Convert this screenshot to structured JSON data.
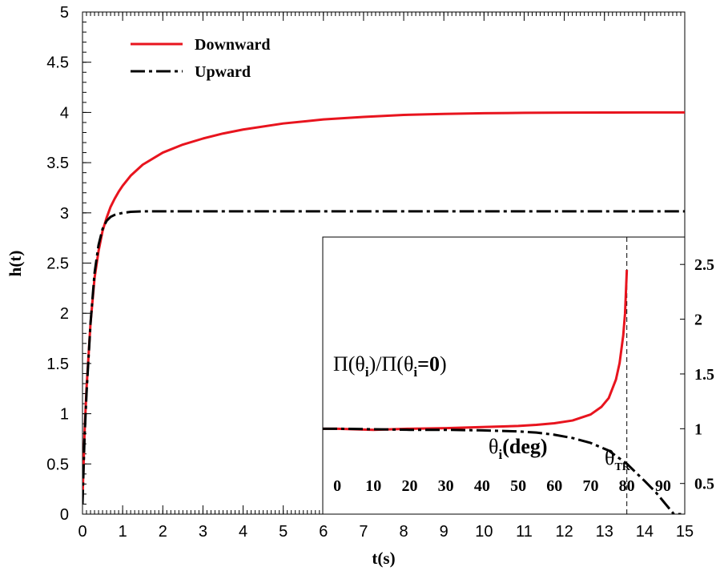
{
  "chart_data": [
    {
      "type": "line",
      "xlabel": "t(s)",
      "ylabel": "h(t)",
      "xlim": [
        0,
        15
      ],
      "ylim": [
        0,
        5
      ],
      "x_ticks": [
        "0",
        "1",
        "2",
        "3",
        "4",
        "5",
        "6",
        "7",
        "8",
        "9",
        "10",
        "11",
        "12",
        "13",
        "14",
        "15"
      ],
      "y_ticks": [
        "0",
        "0.5",
        "1",
        "1.5",
        "2",
        "2.5",
        "3",
        "3.5",
        "4",
        "4.5",
        "5"
      ],
      "grid": false,
      "legend_position": "top-left",
      "series": [
        {
          "name": "Downward",
          "color": "#e8141e",
          "style": "solid",
          "x": [
            0,
            0.05,
            0.1,
            0.2,
            0.3,
            0.4,
            0.5,
            0.6,
            0.7,
            0.8,
            0.9,
            1.0,
            1.2,
            1.5,
            2,
            2.5,
            3,
            3.5,
            4,
            5,
            6,
            7,
            8,
            9,
            10,
            11,
            12,
            13,
            14,
            15
          ],
          "y": [
            0.15,
            0.8,
            1.25,
            1.9,
            2.35,
            2.62,
            2.82,
            2.95,
            3.06,
            3.14,
            3.21,
            3.27,
            3.37,
            3.48,
            3.6,
            3.68,
            3.74,
            3.79,
            3.83,
            3.89,
            3.93,
            3.955,
            3.975,
            3.985,
            3.992,
            3.996,
            3.998,
            3.999,
            4.0,
            4.0
          ]
        },
        {
          "name": "Upward",
          "color": "#000000",
          "style": "dash-dot",
          "x": [
            0,
            0.05,
            0.1,
            0.2,
            0.3,
            0.4,
            0.5,
            0.6,
            0.7,
            0.8,
            0.9,
            1.0,
            1.2,
            1.5,
            2,
            3,
            5,
            8,
            10,
            12,
            15
          ],
          "y": [
            0.1,
            0.75,
            1.2,
            1.9,
            2.4,
            2.68,
            2.84,
            2.92,
            2.96,
            2.98,
            2.99,
            3.0,
            3.01,
            3.015,
            3.015,
            3.015,
            3.015,
            3.015,
            3.015,
            3.015,
            3.015
          ]
        }
      ]
    },
    {
      "type": "line",
      "position": "inset-bottom-right",
      "label_text": "Π(θi)/Π(θi=0)",
      "xlabel": "θi(deg)",
      "marker_label": "θTR",
      "marker_x": 80,
      "xlim": [
        -4,
        96
      ],
      "ylim": [
        0.22,
        2.75
      ],
      "x_ticks": [
        "0",
        "10",
        "20",
        "30",
        "40",
        "50",
        "60",
        "70",
        "80",
        "90"
      ],
      "y_ticks": [
        "0.5",
        "1",
        "1.5",
        "2",
        "2.5"
      ],
      "series": [
        {
          "name": "Downward",
          "color": "#e8141e",
          "style": "solid",
          "x": [
            -4,
            0,
            10,
            20,
            30,
            40,
            50,
            55,
            60,
            65,
            70,
            73,
            75,
            77,
            78,
            79,
            79.5,
            80
          ],
          "y": [
            1.0,
            1.0,
            0.99,
            1.0,
            1.005,
            1.015,
            1.025,
            1.035,
            1.05,
            1.075,
            1.13,
            1.2,
            1.28,
            1.45,
            1.6,
            1.85,
            2.05,
            2.45
          ]
        },
        {
          "name": "Upward",
          "color": "#000000",
          "style": "dash-dot",
          "x": [
            -4,
            0,
            10,
            20,
            30,
            40,
            50,
            55,
            60,
            65,
            70,
            75,
            80,
            85,
            88,
            91,
            93,
            95
          ],
          "y": [
            1.0,
            1.0,
            0.995,
            0.99,
            0.99,
            0.985,
            0.975,
            0.965,
            0.945,
            0.915,
            0.87,
            0.8,
            0.68,
            0.52,
            0.42,
            0.3,
            0.22,
            0.22
          ]
        }
      ]
    }
  ]
}
